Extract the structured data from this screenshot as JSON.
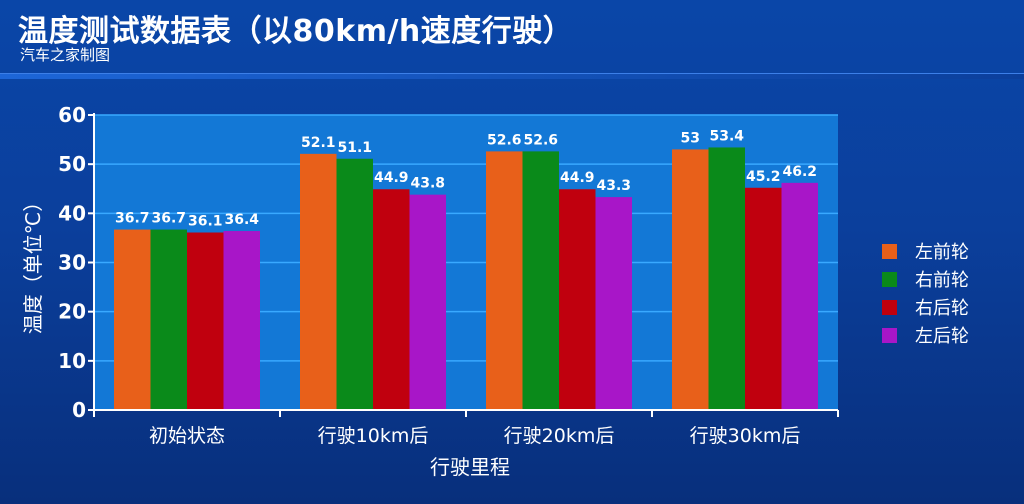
{
  "header": {
    "title": "温度测试数据表（以80km/h速度行驶）",
    "subtitle": "汽车之家制图"
  },
  "colors": {
    "left_front": "#e8601a",
    "right_front": "#0a8a1a",
    "right_rear": "#c0000e",
    "left_rear": "#a816c8",
    "plot_bg": "#1378d6",
    "gridline": "#39a9ff",
    "axis": "#ffffff"
  },
  "chart_data": {
    "type": "bar",
    "title": "",
    "xlabel": "行驶里程",
    "ylabel": "温度（单位℃）",
    "ylim": [
      0,
      60
    ],
    "yticks": [
      0,
      10,
      20,
      30,
      40,
      50,
      60
    ],
    "grid": true,
    "legend_position": "right",
    "categories": [
      "初始状态",
      "行驶10km后",
      "行驶20km后",
      "行驶30km后"
    ],
    "series": [
      {
        "name": "左前轮",
        "color": "#e8601a",
        "values": [
          36.7,
          52.1,
          52.6,
          53
        ]
      },
      {
        "name": "右前轮",
        "color": "#0a8a1a",
        "values": [
          36.7,
          51.1,
          52.6,
          53.4
        ]
      },
      {
        "name": "右后轮",
        "color": "#c0000e",
        "values": [
          36.1,
          44.9,
          44.9,
          45.2
        ]
      },
      {
        "name": "左后轮",
        "color": "#a816c8",
        "values": [
          36.4,
          43.8,
          43.3,
          46.2
        ]
      }
    ]
  }
}
